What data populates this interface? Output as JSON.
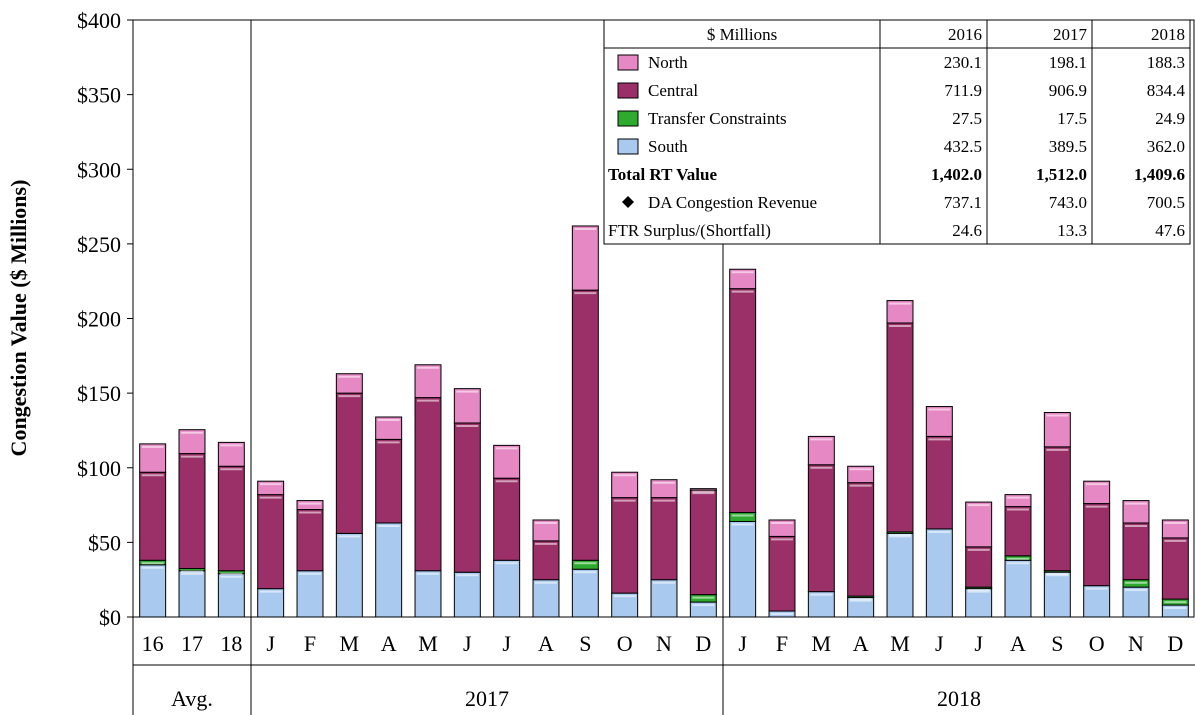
{
  "chart_data": {
    "type": "bar",
    "stacked": true,
    "ylabel": "Congestion Value ($ Millions)",
    "y_ticks": [
      "$0",
      "$50",
      "$100",
      "$150",
      "$200",
      "$250",
      "$300",
      "$350",
      "$400"
    ],
    "ylim": [
      0,
      400
    ],
    "grid": false,
    "categories": [
      "16",
      "17",
      "18",
      "J",
      "F",
      "M",
      "A",
      "M",
      "J",
      "J",
      "A",
      "S",
      "O",
      "N",
      "D",
      "J",
      "F",
      "M",
      "A",
      "M",
      "J",
      "J",
      "A",
      "S",
      "O",
      "N",
      "D"
    ],
    "groups": [
      {
        "label": "Avg.",
        "count": 3
      },
      {
        "label": "2017",
        "count": 12
      },
      {
        "label": "2018",
        "count": 12
      }
    ],
    "series": [
      {
        "name": "South",
        "color": "#a9c9ee",
        "values": [
          35,
          31,
          29,
          19,
          31,
          56,
          63,
          31,
          30,
          38,
          25,
          32,
          16,
          25,
          10,
          64,
          4,
          17,
          13,
          56,
          59,
          19,
          38,
          30,
          21,
          20,
          8
        ]
      },
      {
        "name": "Transfer Constraints",
        "color": "#2eab2e",
        "values": [
          3,
          1.5,
          2,
          0,
          0,
          0,
          0,
          0,
          0,
          0,
          0,
          6,
          0,
          0,
          5,
          6,
          0,
          0,
          1,
          1,
          0,
          1,
          3,
          1,
          0,
          5,
          4
        ]
      },
      {
        "name": "Central",
        "color": "#9b2f67",
        "values": [
          59,
          77,
          70,
          63,
          41,
          94,
          56,
          116,
          100,
          55,
          26,
          181,
          64,
          55,
          70,
          150,
          50,
          85,
          76,
          140,
          62,
          27,
          33,
          83,
          55,
          38,
          41
        ]
      },
      {
        "name": "North",
        "color": "#e688c4",
        "values": [
          19,
          16,
          16,
          9,
          6,
          13,
          15,
          22,
          23,
          22,
          14,
          43,
          17,
          12,
          1,
          13,
          11,
          19,
          11,
          15,
          20,
          30,
          8,
          23,
          15,
          15,
          12
        ]
      }
    ],
    "da_congestion_revenue": {
      "name": "DA Congestion Revenue",
      "marker": "diamond",
      "values": []
    },
    "table": {
      "header": [
        "$ Millions",
        "2016",
        "2017",
        "2018"
      ],
      "rows": [
        {
          "label": "North",
          "key": "North",
          "values": [
            "230.1",
            "198.1",
            "188.3"
          ]
        },
        {
          "label": "Central",
          "key": "Central",
          "values": [
            "711.9",
            "906.9",
            "834.4"
          ]
        },
        {
          "label": "Transfer Constraints",
          "key": "Transfer Constraints",
          "values": [
            "27.5",
            "17.5",
            "24.9"
          ]
        },
        {
          "label": "South",
          "key": "South",
          "values": [
            "432.5",
            "389.5",
            "362.0"
          ]
        },
        {
          "label": "Total RT Value",
          "key": "total",
          "bold": true,
          "values": [
            "1,402.0",
            "1,512.0",
            "1,409.6"
          ]
        },
        {
          "label": "DA Congestion Revenue",
          "key": "diamond",
          "values": [
            "737.1",
            "743.0",
            "700.5"
          ]
        },
        {
          "label": "FTR Surplus/(Shortfall)",
          "key": "",
          "values": [
            "24.6",
            "13.3",
            "47.6"
          ]
        }
      ]
    }
  }
}
